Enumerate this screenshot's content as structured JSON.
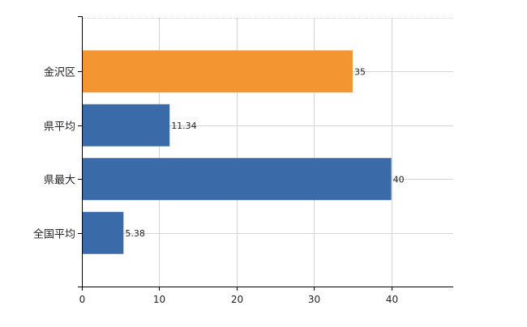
{
  "chart_data": {
    "type": "bar",
    "orientation": "horizontal",
    "categories": [
      "金沢区",
      "県平均",
      "県最大",
      "全国平均"
    ],
    "values": [
      35,
      11.34,
      40,
      5.38
    ],
    "value_labels": [
      "35",
      "11.34",
      "40",
      "5.38"
    ],
    "highlight_index": 0,
    "xlim": [
      0,
      48
    ],
    "x_ticks": [
      0,
      10,
      20,
      30,
      40
    ],
    "x_tick_labels": [
      "0",
      "10",
      "20",
      "30",
      "40"
    ],
    "grid": true,
    "legend": "none",
    "colors": {
      "highlight": "#F39530",
      "default": "#3B6AA8",
      "gridline": "#D4D4D4",
      "axis": "#000000"
    }
  }
}
